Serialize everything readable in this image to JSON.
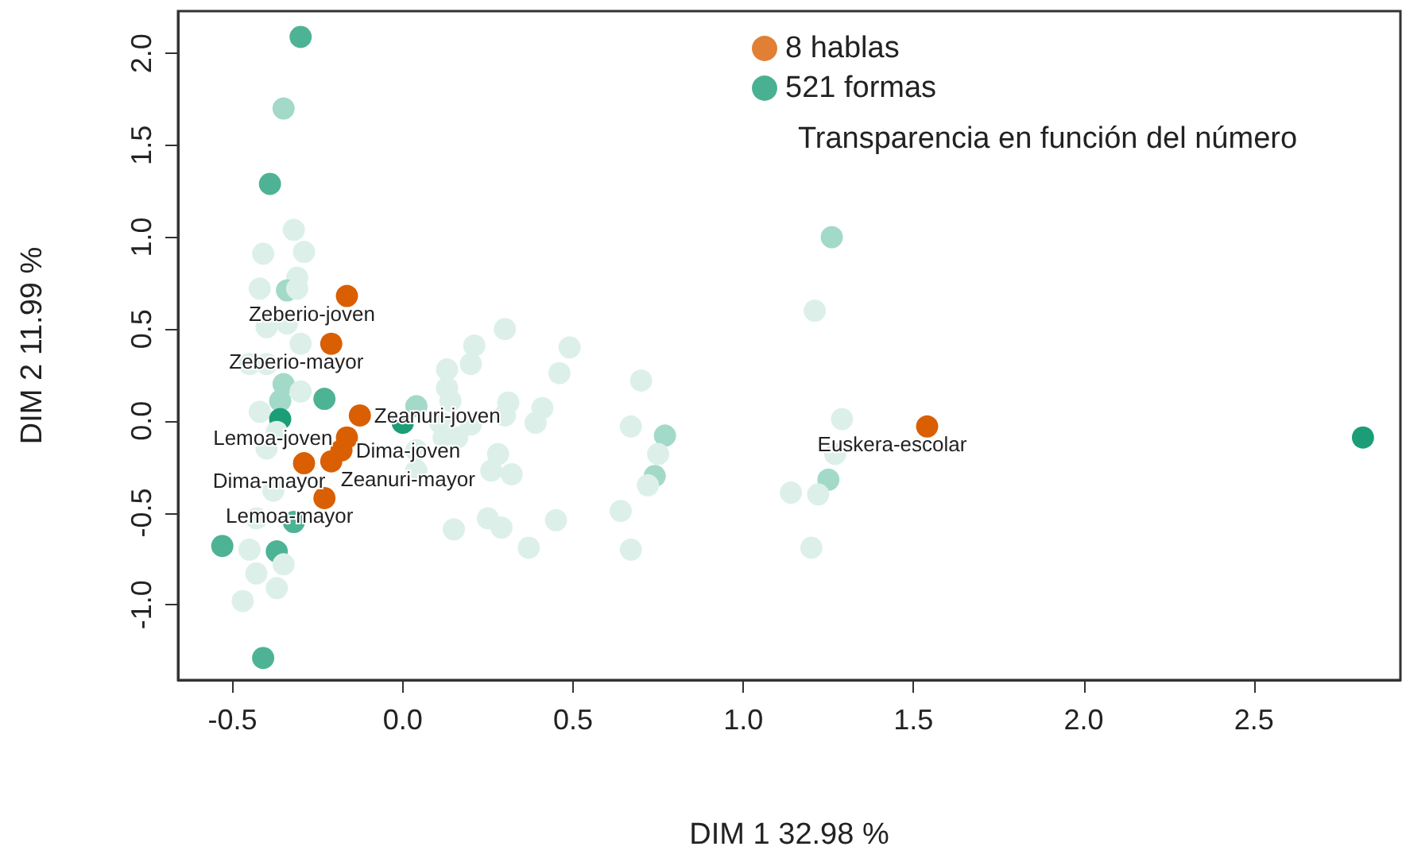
{
  "chart_data": {
    "type": "scatter",
    "xlabel": "DIM 1 32.98 %",
    "ylabel": "DIM 2 11.99 %",
    "xlim": [
      -0.66,
      2.93
    ],
    "ylim": [
      -1.41,
      2.23
    ],
    "xticks": [
      {
        "value": -0.5,
        "label": "-0.5"
      },
      {
        "value": 0,
        "label": "0.0"
      },
      {
        "value": 0.5,
        "label": "0.5"
      },
      {
        "value": 1,
        "label": "1.0"
      },
      {
        "value": 1.5,
        "label": "1.5"
      },
      {
        "value": 2,
        "label": "2.0"
      },
      {
        "value": 2.5,
        "label": "2.5"
      }
    ],
    "yticks": [
      {
        "value": -1,
        "label": "-1.0"
      },
      {
        "value": -0.5,
        "label": "-0.5"
      },
      {
        "value": 0,
        "label": "0.0"
      },
      {
        "value": 0.5,
        "label": "0.5"
      },
      {
        "value": 1,
        "label": "1.0"
      },
      {
        "value": 1.5,
        "label": "1.5"
      },
      {
        "value": 2,
        "label": "2.0"
      }
    ],
    "grid": false,
    "legend": "top right",
    "marker": "circle",
    "annotations": [
      "Transparencia en función del número"
    ],
    "series": [
      {
        "name": "8 hablas",
        "color": "#d95f02",
        "x": [
          -0.164,
          -0.21,
          -0.126,
          -0.164,
          -0.18,
          -0.29,
          -0.21,
          -0.23,
          1.54
        ],
        "values": [
          0.68,
          0.42,
          0.03,
          -0.09,
          -0.16,
          -0.23,
          -0.22,
          -0.42,
          -0.03
        ],
        "value_labels": [
          "Zeberio-joven",
          "Zeberio-mayor",
          "Zeanuri-joven",
          "Lemoa-joven",
          "Dima-joven",
          "Dima-mayor",
          "Zeanuri-mayor",
          "Lemoa-mayor",
          "Euskera-escolar"
        ]
      },
      {
        "name": "521 formas",
        "color": "#1b9e77",
        "x": [
          -0.3,
          -0.35,
          -0.39,
          -0.32,
          -0.41,
          -0.29,
          -0.31,
          -0.42,
          -0.34,
          -0.31,
          -0.4,
          -0.34,
          -0.3,
          -0.45,
          -0.4,
          -0.35,
          -0.3,
          -0.23,
          -0.36,
          -0.42,
          -0.36,
          0.0,
          0.04,
          -0.37,
          -0.4,
          0.04,
          0.04,
          -0.38,
          -0.32,
          -0.43,
          -0.53,
          -0.45,
          -0.37,
          -0.35,
          -0.43,
          -0.37,
          -0.47,
          -0.41,
          0.15,
          0.21,
          0.2,
          0.13,
          0.13,
          0.14,
          0.11,
          0.12,
          0.2,
          0.25,
          0.3,
          0.49,
          0.46,
          0.7,
          0.31,
          0.41,
          0.3,
          0.39,
          0.67,
          0.77,
          0.16,
          0.75,
          0.28,
          0.26,
          0.32,
          0.74,
          0.72,
          0.64,
          0.29,
          0.45,
          0.37,
          0.67,
          1.21,
          1.26,
          1.29,
          1.27,
          1.25,
          1.14,
          1.22,
          1.2,
          2.82
        ],
        "values": [
          2.09,
          1.7,
          1.29,
          1.04,
          0.91,
          0.92,
          0.78,
          0.72,
          0.71,
          0.72,
          0.51,
          0.53,
          0.42,
          0.31,
          0.31,
          0.2,
          0.16,
          0.12,
          0.11,
          0.05,
          0.01,
          -0.01,
          0.08,
          -0.06,
          -0.15,
          -0.16,
          -0.27,
          -0.38,
          -0.55,
          -0.53,
          -0.68,
          -0.7,
          -0.71,
          -0.78,
          -0.83,
          -0.91,
          -0.98,
          -1.29,
          -0.59,
          0.41,
          0.31,
          0.28,
          0.18,
          0.11,
          -0.01,
          -0.09,
          -0.02,
          -0.53,
          0.5,
          0.4,
          0.26,
          0.22,
          0.1,
          0.07,
          0.03,
          -0.01,
          -0.03,
          -0.08,
          -0.09,
          -0.18,
          -0.18,
          -0.27,
          -0.29,
          -0.3,
          -0.35,
          -0.49,
          -0.58,
          -0.54,
          -0.69,
          -0.7,
          0.6,
          1.0,
          0.01,
          -0.18,
          -0.32,
          -0.39,
          -0.4,
          -0.69,
          -0.09
        ],
        "colors": [
          "#4db394",
          "#a3d9c8",
          "#4db394",
          "#dcf0e9",
          "#dcf0e9",
          "#dcf0e9",
          "#dcf0e9",
          "#dcf0e9",
          "#a3d9c8",
          "#dcf0e9",
          "#dcf0e9",
          "#dcf0e9",
          "#dcf0e9",
          "#dcf0e9",
          "#dcf0e9",
          "#a3d9c8",
          "#dcf0e9",
          "#4db394",
          "#a3d9c8",
          "#dcf0e9",
          "#1b9e77",
          "#1b9e77",
          "#a3d9c8",
          "#dcf0e9",
          "#dcf0e9",
          "#dcf0e9",
          "#dcf0e9",
          "#dcf0e9",
          "#4db394",
          "#dcf0e9",
          "#4db394",
          "#dcf0e9",
          "#4db394",
          "#dcf0e9",
          "#dcf0e9",
          "#dcf0e9",
          "#dcf0e9",
          "#4db394",
          "#dcf0e9",
          "#dcf0e9",
          "#dcf0e9",
          "#dcf0e9",
          "#dcf0e9",
          "#dcf0e9",
          "#dcf0e9",
          "#dcf0e9",
          "#dcf0e9",
          "#dcf0e9",
          "#dcf0e9",
          "#dcf0e9",
          "#dcf0e9",
          "#dcf0e9",
          "#dcf0e9",
          "#dcf0e9",
          "#dcf0e9",
          "#dcf0e9",
          "#dcf0e9",
          "#a3d9c8",
          "#dcf0e9",
          "#dcf0e9",
          "#dcf0e9",
          "#dcf0e9",
          "#dcf0e9",
          "#a3d9c8",
          "#dcf0e9",
          "#dcf0e9",
          "#dcf0e9",
          "#dcf0e9",
          "#dcf0e9",
          "#dcf0e9",
          "#dcf0e9",
          "#a3d9c8",
          "#dcf0e9",
          "#dcf0e9",
          "#a3d9c8",
          "#dcf0e9",
          "#dcf0e9",
          "#dcf0e9",
          "#1b9e77"
        ]
      }
    ]
  }
}
